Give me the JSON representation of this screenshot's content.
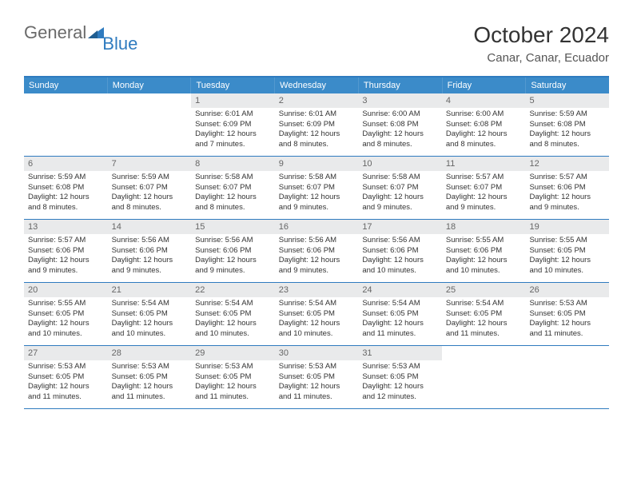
{
  "logo": {
    "word1": "General",
    "word2": "Blue"
  },
  "title": {
    "main": "October 2024",
    "sub": "Canar, Canar, Ecuador"
  },
  "colors": {
    "header_bg": "#3b8bc9",
    "border": "#2f7bbf",
    "daynum_bg": "#e9eaeb",
    "logo_gray": "#6a6a6a",
    "logo_blue": "#2f7bbf"
  },
  "weekdays": [
    "Sunday",
    "Monday",
    "Tuesday",
    "Wednesday",
    "Thursday",
    "Friday",
    "Saturday"
  ],
  "weeks": [
    [
      {
        "n": "",
        "sr": "",
        "ss": "",
        "dl": "",
        "dl2": "",
        "empty": true
      },
      {
        "n": "",
        "sr": "",
        "ss": "",
        "dl": "",
        "dl2": "",
        "empty": true
      },
      {
        "n": "1",
        "sr": "Sunrise: 6:01 AM",
        "ss": "Sunset: 6:09 PM",
        "dl": "Daylight: 12 hours",
        "dl2": "and 7 minutes."
      },
      {
        "n": "2",
        "sr": "Sunrise: 6:01 AM",
        "ss": "Sunset: 6:09 PM",
        "dl": "Daylight: 12 hours",
        "dl2": "and 8 minutes."
      },
      {
        "n": "3",
        "sr": "Sunrise: 6:00 AM",
        "ss": "Sunset: 6:08 PM",
        "dl": "Daylight: 12 hours",
        "dl2": "and 8 minutes."
      },
      {
        "n": "4",
        "sr": "Sunrise: 6:00 AM",
        "ss": "Sunset: 6:08 PM",
        "dl": "Daylight: 12 hours",
        "dl2": "and 8 minutes."
      },
      {
        "n": "5",
        "sr": "Sunrise: 5:59 AM",
        "ss": "Sunset: 6:08 PM",
        "dl": "Daylight: 12 hours",
        "dl2": "and 8 minutes."
      }
    ],
    [
      {
        "n": "6",
        "sr": "Sunrise: 5:59 AM",
        "ss": "Sunset: 6:08 PM",
        "dl": "Daylight: 12 hours",
        "dl2": "and 8 minutes."
      },
      {
        "n": "7",
        "sr": "Sunrise: 5:59 AM",
        "ss": "Sunset: 6:07 PM",
        "dl": "Daylight: 12 hours",
        "dl2": "and 8 minutes."
      },
      {
        "n": "8",
        "sr": "Sunrise: 5:58 AM",
        "ss": "Sunset: 6:07 PM",
        "dl": "Daylight: 12 hours",
        "dl2": "and 8 minutes."
      },
      {
        "n": "9",
        "sr": "Sunrise: 5:58 AM",
        "ss": "Sunset: 6:07 PM",
        "dl": "Daylight: 12 hours",
        "dl2": "and 9 minutes."
      },
      {
        "n": "10",
        "sr": "Sunrise: 5:58 AM",
        "ss": "Sunset: 6:07 PM",
        "dl": "Daylight: 12 hours",
        "dl2": "and 9 minutes."
      },
      {
        "n": "11",
        "sr": "Sunrise: 5:57 AM",
        "ss": "Sunset: 6:07 PM",
        "dl": "Daylight: 12 hours",
        "dl2": "and 9 minutes."
      },
      {
        "n": "12",
        "sr": "Sunrise: 5:57 AM",
        "ss": "Sunset: 6:06 PM",
        "dl": "Daylight: 12 hours",
        "dl2": "and 9 minutes."
      }
    ],
    [
      {
        "n": "13",
        "sr": "Sunrise: 5:57 AM",
        "ss": "Sunset: 6:06 PM",
        "dl": "Daylight: 12 hours",
        "dl2": "and 9 minutes."
      },
      {
        "n": "14",
        "sr": "Sunrise: 5:56 AM",
        "ss": "Sunset: 6:06 PM",
        "dl": "Daylight: 12 hours",
        "dl2": "and 9 minutes."
      },
      {
        "n": "15",
        "sr": "Sunrise: 5:56 AM",
        "ss": "Sunset: 6:06 PM",
        "dl": "Daylight: 12 hours",
        "dl2": "and 9 minutes."
      },
      {
        "n": "16",
        "sr": "Sunrise: 5:56 AM",
        "ss": "Sunset: 6:06 PM",
        "dl": "Daylight: 12 hours",
        "dl2": "and 9 minutes."
      },
      {
        "n": "17",
        "sr": "Sunrise: 5:56 AM",
        "ss": "Sunset: 6:06 PM",
        "dl": "Daylight: 12 hours",
        "dl2": "and 10 minutes."
      },
      {
        "n": "18",
        "sr": "Sunrise: 5:55 AM",
        "ss": "Sunset: 6:06 PM",
        "dl": "Daylight: 12 hours",
        "dl2": "and 10 minutes."
      },
      {
        "n": "19",
        "sr": "Sunrise: 5:55 AM",
        "ss": "Sunset: 6:05 PM",
        "dl": "Daylight: 12 hours",
        "dl2": "and 10 minutes."
      }
    ],
    [
      {
        "n": "20",
        "sr": "Sunrise: 5:55 AM",
        "ss": "Sunset: 6:05 PM",
        "dl": "Daylight: 12 hours",
        "dl2": "and 10 minutes."
      },
      {
        "n": "21",
        "sr": "Sunrise: 5:54 AM",
        "ss": "Sunset: 6:05 PM",
        "dl": "Daylight: 12 hours",
        "dl2": "and 10 minutes."
      },
      {
        "n": "22",
        "sr": "Sunrise: 5:54 AM",
        "ss": "Sunset: 6:05 PM",
        "dl": "Daylight: 12 hours",
        "dl2": "and 10 minutes."
      },
      {
        "n": "23",
        "sr": "Sunrise: 5:54 AM",
        "ss": "Sunset: 6:05 PM",
        "dl": "Daylight: 12 hours",
        "dl2": "and 10 minutes."
      },
      {
        "n": "24",
        "sr": "Sunrise: 5:54 AM",
        "ss": "Sunset: 6:05 PM",
        "dl": "Daylight: 12 hours",
        "dl2": "and 11 minutes."
      },
      {
        "n": "25",
        "sr": "Sunrise: 5:54 AM",
        "ss": "Sunset: 6:05 PM",
        "dl": "Daylight: 12 hours",
        "dl2": "and 11 minutes."
      },
      {
        "n": "26",
        "sr": "Sunrise: 5:53 AM",
        "ss": "Sunset: 6:05 PM",
        "dl": "Daylight: 12 hours",
        "dl2": "and 11 minutes."
      }
    ],
    [
      {
        "n": "27",
        "sr": "Sunrise: 5:53 AM",
        "ss": "Sunset: 6:05 PM",
        "dl": "Daylight: 12 hours",
        "dl2": "and 11 minutes."
      },
      {
        "n": "28",
        "sr": "Sunrise: 5:53 AM",
        "ss": "Sunset: 6:05 PM",
        "dl": "Daylight: 12 hours",
        "dl2": "and 11 minutes."
      },
      {
        "n": "29",
        "sr": "Sunrise: 5:53 AM",
        "ss": "Sunset: 6:05 PM",
        "dl": "Daylight: 12 hours",
        "dl2": "and 11 minutes."
      },
      {
        "n": "30",
        "sr": "Sunrise: 5:53 AM",
        "ss": "Sunset: 6:05 PM",
        "dl": "Daylight: 12 hours",
        "dl2": "and 11 minutes."
      },
      {
        "n": "31",
        "sr": "Sunrise: 5:53 AM",
        "ss": "Sunset: 6:05 PM",
        "dl": "Daylight: 12 hours",
        "dl2": "and 12 minutes."
      },
      {
        "n": "",
        "sr": "",
        "ss": "",
        "dl": "",
        "dl2": "",
        "empty": true
      },
      {
        "n": "",
        "sr": "",
        "ss": "",
        "dl": "",
        "dl2": "",
        "empty": true
      }
    ]
  ]
}
